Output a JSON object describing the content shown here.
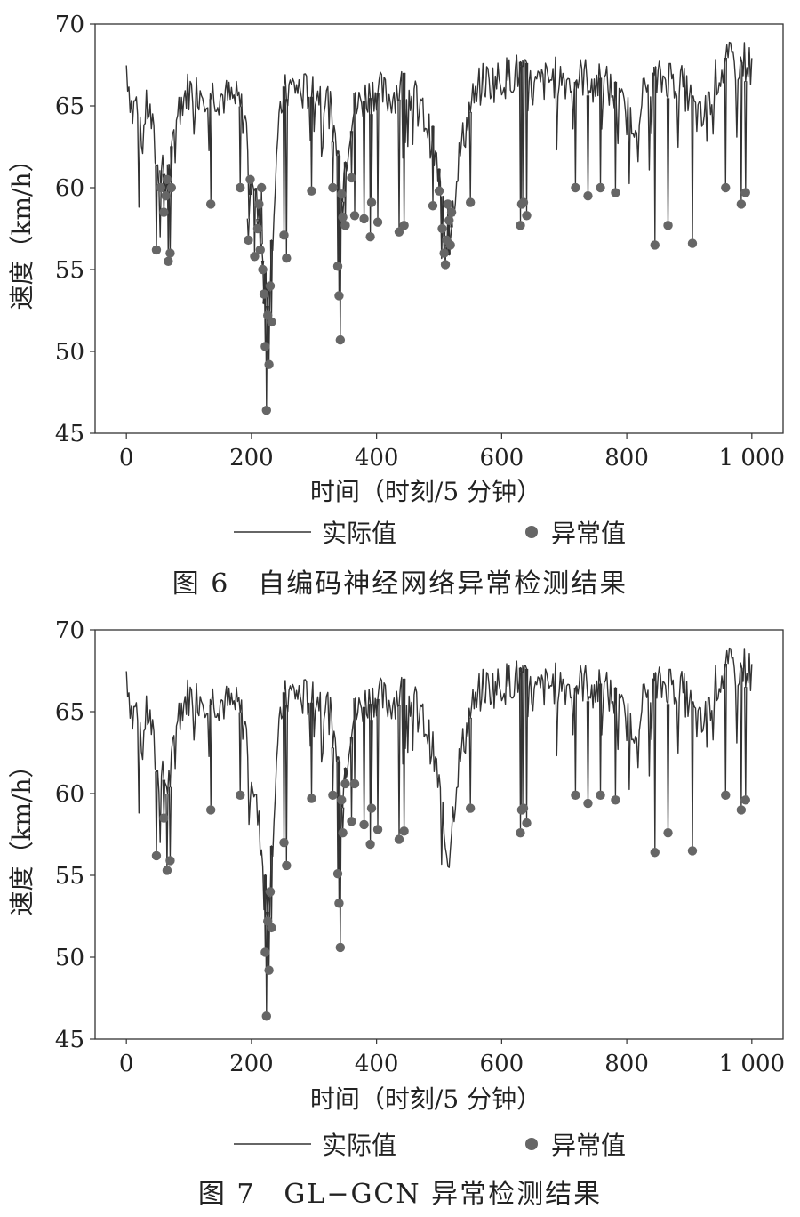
{
  "chart_data": [
    {
      "type": "line",
      "caption": "图 6　自编码神经网络异常检测结果",
      "xlabel": "时间（时刻/5 分钟）",
      "ylabel": "速度（km/h）",
      "xlim": [
        -50,
        1050
      ],
      "ylim": [
        45,
        70
      ],
      "xticks": [
        0,
        200,
        400,
        600,
        800,
        1000
      ],
      "xtick_labels": [
        "0",
        "200",
        "400",
        "600",
        "800",
        "1 000"
      ],
      "yticks": [
        45,
        50,
        55,
        60,
        65,
        70
      ],
      "ytick_labels": [
        "45",
        "50",
        "55",
        "60",
        "65",
        "70"
      ],
      "grid": false,
      "legend_position": "bottom",
      "series": [
        {
          "name": "实际值",
          "style": "line",
          "color": "#333333",
          "x": [
            0,
            5,
            10,
            15,
            20,
            25,
            30,
            35,
            40,
            45,
            50,
            55,
            60,
            65,
            70,
            75,
            80,
            90,
            100,
            110,
            120,
            140,
            160,
            180,
            190,
            200,
            205,
            210,
            215,
            220,
            225,
            230,
            235,
            240,
            250,
            260,
            270,
            280,
            300,
            320,
            330,
            340,
            345,
            350,
            360,
            380,
            400,
            420,
            440,
            460,
            480,
            490,
            500,
            505,
            510,
            515,
            520,
            530,
            550,
            570,
            590,
            610,
            620,
            630,
            640,
            650,
            670,
            690,
            710,
            730,
            750,
            770,
            790,
            800,
            810,
            820,
            830,
            850,
            870,
            890,
            900,
            910,
            920,
            930,
            940,
            950,
            960,
            970,
            980,
            990,
            1000
          ],
          "y": [
            67.5,
            66.0,
            64.5,
            65.5,
            63.5,
            62.5,
            64.5,
            65.0,
            64.0,
            62.5,
            61.0,
            60.5,
            61.0,
            60.5,
            61.0,
            62.5,
            64.5,
            65.5,
            66.0,
            65.8,
            66.0,
            65.8,
            65.5,
            65.2,
            64.0,
            61.5,
            60.0,
            58.5,
            57.0,
            55.0,
            53.5,
            55.0,
            58.0,
            62.0,
            65.5,
            66.0,
            66.2,
            65.8,
            66.0,
            65.5,
            64.0,
            61.5,
            60.0,
            61.5,
            64.5,
            65.5,
            66.0,
            65.5,
            66.2,
            65.5,
            64.0,
            62.5,
            60.5,
            58.5,
            57.0,
            56.5,
            58.0,
            61.5,
            65.0,
            66.5,
            66.5,
            66.8,
            67.0,
            67.0,
            66.5,
            66.0,
            66.5,
            66.8,
            66.5,
            66.8,
            66.5,
            66.2,
            65.0,
            64.5,
            64.0,
            65.0,
            66.0,
            66.5,
            66.8,
            66.2,
            65.5,
            64.5,
            64.0,
            65.0,
            66.5,
            67.0,
            67.5,
            67.8,
            67.5,
            67.8,
            67.2
          ]
        },
        {
          "name": "异常值",
          "style": "marker",
          "color": "#666666",
          "x": [
            48,
            55,
            60,
            63,
            65,
            67,
            70,
            72,
            135,
            182,
            195,
            198,
            205,
            210,
            212,
            214,
            216,
            218,
            220,
            222,
            224,
            226,
            228,
            230,
            232,
            252,
            256,
            296,
            330,
            338,
            340,
            342,
            344,
            346,
            350,
            360,
            365,
            380,
            390,
            392,
            402,
            436,
            444,
            490,
            500,
            505,
            508,
            510,
            512,
            514,
            516,
            518,
            520,
            550,
            630,
            632,
            635,
            640,
            718,
            738,
            758,
            782,
            845,
            866,
            905,
            958,
            983,
            990
          ],
          "y": [
            56.2,
            60.0,
            58.5,
            59.5,
            60.5,
            55.5,
            56.0,
            60.0,
            59.0,
            60.0,
            56.8,
            60.5,
            55.8,
            57.5,
            59.0,
            56.2,
            60.0,
            55.0,
            53.5,
            50.3,
            46.4,
            52.2,
            49.2,
            54.0,
            51.8,
            57.1,
            55.7,
            59.8,
            60.0,
            55.2,
            53.4,
            50.7,
            59.6,
            58.2,
            57.7,
            60.6,
            58.3,
            58.1,
            57.0,
            59.1,
            57.9,
            57.3,
            57.7,
            58.9,
            59.8,
            57.5,
            56.0,
            55.3,
            56.8,
            59.0,
            58.0,
            56.5,
            58.5,
            59.1,
            57.7,
            59.0,
            59.1,
            58.3,
            60.0,
            59.5,
            60.0,
            59.7,
            56.5,
            57.7,
            56.6,
            60.0,
            59.0,
            59.7
          ]
        }
      ]
    },
    {
      "type": "line",
      "caption": "图 7　GL−GCN 异常检测结果",
      "xlabel": "时间（时刻/5 分钟）",
      "ylabel": "速度（km/h）",
      "xlim": [
        -50,
        1050
      ],
      "ylim": [
        45,
        70
      ],
      "xticks": [
        0,
        200,
        400,
        600,
        800,
        1000
      ],
      "xtick_labels": [
        "0",
        "200",
        "400",
        "600",
        "800",
        "1 000"
      ],
      "yticks": [
        45,
        50,
        55,
        60,
        65,
        70
      ],
      "ytick_labels": [
        "45",
        "50",
        "55",
        "60",
        "65",
        "70"
      ],
      "grid": false,
      "legend_position": "bottom",
      "series": [
        {
          "name": "实际值",
          "style": "line",
          "color": "#333333",
          "x": [
            0,
            5,
            10,
            15,
            20,
            25,
            30,
            35,
            40,
            45,
            50,
            55,
            60,
            65,
            70,
            75,
            80,
            90,
            100,
            110,
            120,
            140,
            160,
            180,
            190,
            200,
            205,
            210,
            215,
            220,
            225,
            230,
            235,
            240,
            250,
            260,
            270,
            280,
            300,
            320,
            330,
            340,
            345,
            350,
            360,
            380,
            400,
            420,
            440,
            460,
            480,
            490,
            500,
            505,
            510,
            515,
            520,
            530,
            550,
            570,
            590,
            610,
            620,
            630,
            640,
            650,
            670,
            690,
            710,
            730,
            750,
            770,
            790,
            800,
            810,
            820,
            830,
            850,
            870,
            890,
            900,
            910,
            920,
            930,
            940,
            950,
            960,
            970,
            980,
            990,
            1000
          ],
          "y": [
            67.5,
            66.0,
            64.5,
            65.5,
            63.5,
            62.5,
            64.5,
            65.0,
            64.0,
            62.5,
            61.0,
            60.5,
            61.0,
            60.5,
            61.0,
            62.5,
            64.5,
            65.5,
            66.0,
            65.8,
            66.0,
            65.8,
            65.5,
            65.2,
            64.0,
            61.5,
            60.0,
            58.5,
            57.0,
            55.0,
            53.5,
            55.0,
            58.0,
            62.0,
            65.5,
            66.0,
            66.2,
            65.8,
            66.0,
            65.5,
            64.0,
            61.5,
            60.0,
            61.5,
            64.5,
            65.5,
            66.0,
            65.5,
            66.2,
            65.5,
            64.0,
            62.5,
            60.5,
            58.5,
            57.0,
            56.0,
            58.0,
            61.5,
            65.0,
            66.5,
            66.5,
            66.8,
            67.0,
            67.0,
            66.5,
            66.0,
            66.5,
            66.8,
            66.5,
            66.8,
            66.5,
            66.2,
            65.0,
            64.5,
            64.0,
            65.0,
            66.0,
            66.5,
            66.8,
            66.2,
            65.5,
            64.5,
            64.0,
            65.0,
            66.5,
            67.0,
            67.5,
            67.8,
            67.5,
            67.8,
            67.2
          ]
        },
        {
          "name": "异常值",
          "style": "marker",
          "color": "#666666",
          "x": [
            48,
            60,
            65,
            70,
            135,
            182,
            222,
            224,
            226,
            228,
            230,
            232,
            252,
            256,
            296,
            330,
            338,
            340,
            342,
            344,
            346,
            350,
            360,
            365,
            380,
            390,
            392,
            402,
            436,
            444,
            550,
            630,
            632,
            635,
            640,
            718,
            738,
            758,
            782,
            845,
            866,
            905,
            958,
            983,
            990
          ],
          "y": [
            56.2,
            58.5,
            55.3,
            55.9,
            59.0,
            59.9,
            50.3,
            46.4,
            52.2,
            49.2,
            54.0,
            51.8,
            57.0,
            55.6,
            59.7,
            59.9,
            55.1,
            53.3,
            50.6,
            59.6,
            57.6,
            60.6,
            58.3,
            60.6,
            58.1,
            56.9,
            59.1,
            57.8,
            57.2,
            57.7,
            59.1,
            57.6,
            59.0,
            59.1,
            58.2,
            59.9,
            59.4,
            59.9,
            59.6,
            56.4,
            57.6,
            56.5,
            59.9,
            59.0,
            59.6
          ]
        }
      ]
    }
  ]
}
